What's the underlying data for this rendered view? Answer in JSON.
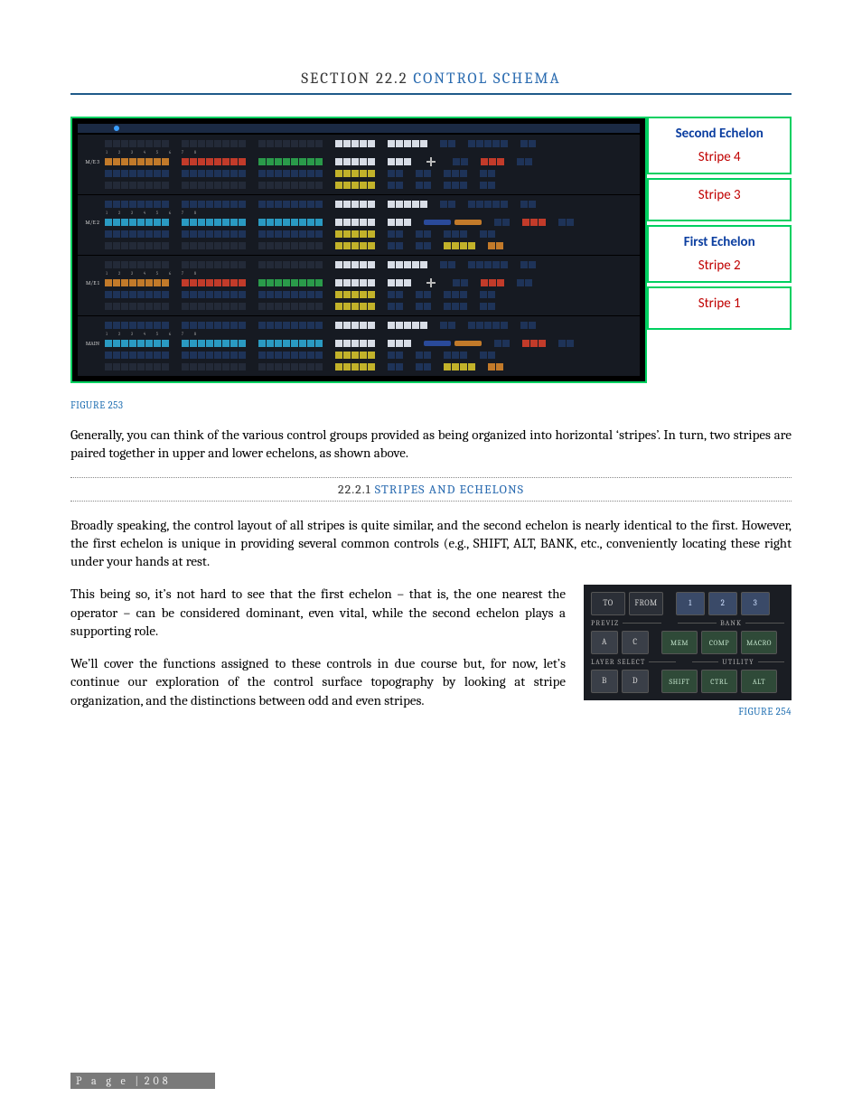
{
  "header": {
    "section_num": "SECTION 22.2",
    "section_title": "CONTROL SCHEMA"
  },
  "fig253": {
    "caption": "FIGURE 253",
    "stripes": [
      {
        "name": "Stripe 4",
        "row_label": "M/E 3",
        "echelon_title": "Second Echelon"
      },
      {
        "name": "Stripe 3",
        "row_label": "M/E 2",
        "echelon_title": null
      },
      {
        "name": "Stripe 2",
        "row_label": "M/E 1",
        "echelon_title": "First Echelon"
      },
      {
        "name": "Stripe 1",
        "row_label": "MAIN",
        "echelon_title": null
      }
    ]
  },
  "para1": "Generally, you can think of the various control groups provided as being organized into horizontal ‘stripes’. In turn, two stripes are paired together in upper and lower echelons, as shown above.",
  "subsection": {
    "num": "22.2.1",
    "title": "STRIPES AND ECHELONS"
  },
  "para2": "Broadly speaking, the control layout of  all stripes is quite similar, and the second echelon is nearly identical to the first.  However, the first echelon is unique in providing several common controls (e.g., SHIFT, ALT, BANK, etc., conveniently locating these right under your hands at rest.",
  "para3": "This being so, it’s not hard to see that the first echelon – that is, the one nearest the operator – can be considered dominant, even vital, while the second echelon plays a supporting role.",
  "para4": "We’ll cover the functions assigned to these controls in due course but, for now, let’s continue our exploration of the control surface topography by looking at stripe organization, and the distinctions between odd and even stripes.",
  "fig254": {
    "caption": "FIGURE 254",
    "row1_left": [
      "TO",
      "FROM"
    ],
    "row1_right": [
      "1",
      "2",
      "3"
    ],
    "label_left_1": "PREVIZ",
    "label_right_1": "BANK",
    "row2_left": [
      "A",
      "C"
    ],
    "row2_right": [
      "MEM",
      "COMP",
      "MACRO"
    ],
    "label_left_2": "LAYER SELECT",
    "label_right_2": "UTILITY",
    "row3_left": [
      "B",
      "D"
    ],
    "row3_right": [
      "SHIFT",
      "CTRL",
      "ALT"
    ]
  },
  "footer": {
    "label": "P a g e",
    "sep": "|",
    "num": "208"
  }
}
